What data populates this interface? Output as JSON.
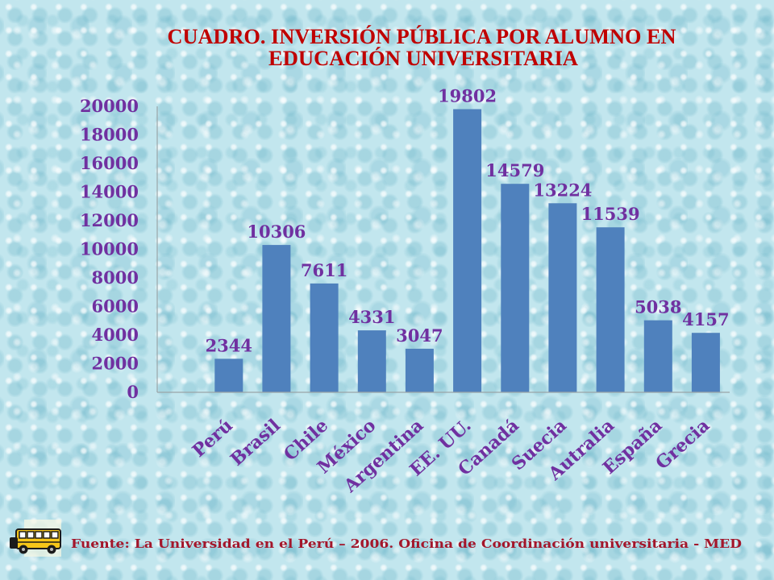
{
  "colors": {
    "background": "#c2e6ee",
    "bar": "#4f81bd",
    "label_text": "#7030a0",
    "title": "#c00000",
    "footer": "#a3162b",
    "axis": "#9aa5a8",
    "bus_body": "#f6c619",
    "bus_outline": "#1b1b1b"
  },
  "icons": {
    "source_clipart": "school-bus-icon"
  },
  "chart_data": {
    "type": "bar",
    "title": [
      "CUADRO. INVERSIÓN PÚBLICA POR ALUMNO EN",
      "EDUCACIÓN UNIVERSITARIA"
    ],
    "categories": [
      "Perú",
      "Brasil",
      "Chile",
      "México",
      "Argentina",
      "EE. UU.",
      "Canadá",
      "Suecia",
      "Autralia",
      "España",
      "Grecia"
    ],
    "values": [
      2344,
      10306,
      7611,
      4331,
      3047,
      19802,
      14579,
      13224,
      11539,
      5038,
      4157
    ],
    "ylim": [
      0,
      20000
    ],
    "yticks": [
      0,
      2000,
      4000,
      6000,
      8000,
      10000,
      12000,
      14000,
      16000,
      18000,
      20000
    ],
    "data_labels": true,
    "grid": false,
    "legend": "none"
  },
  "footer": {
    "source": "Fuente: La Universidad en el Perú – 2006. Oficina de Coordinación universitaria - MED"
  }
}
